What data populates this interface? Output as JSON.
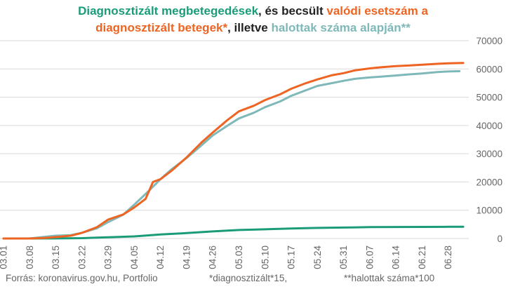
{
  "title": {
    "part1": "Diagnosztizált megbetegedések",
    "part2": ", és becsült ",
    "part3": "valódi esetszám a",
    "part4": "diagnosztizált betegek*",
    "part5": ", illetve ",
    "part6": "halottak száma alapján**"
  },
  "colors": {
    "green": "#1a9c78",
    "orange": "#ee6422",
    "teal": "#7fb8b8",
    "black": "#222222",
    "grid": "#d9d9d9",
    "axis_text": "#666666"
  },
  "footer": {
    "source": "Forrás: koronavirus.gov.hu, Portfolio",
    "note1": "*diagnosztizált*15,",
    "note2": "**halottak száma*100"
  },
  "chart_data": {
    "type": "line",
    "x_start": "2020-03-01",
    "x_end": "2020-07-02",
    "x_ticks": [
      "03.01",
      "03.08",
      "03.15",
      "03.22",
      "03.29",
      "04.05",
      "04.12",
      "04.19",
      "04.26",
      "05.03",
      "05.10",
      "05.17",
      "05.24",
      "05.31",
      "06.07",
      "06.14",
      "06.21",
      "06.28"
    ],
    "y_ticks": [
      0,
      10000,
      20000,
      30000,
      40000,
      50000,
      60000,
      70000
    ],
    "ylim": [
      0,
      70000
    ],
    "y_axis_position": "right",
    "grid": "horizontal",
    "series": [
      {
        "name": "Diagnosztizált megbetegedések",
        "color": "#1a9c78",
        "points": [
          [
            "2020-03-01",
            0
          ],
          [
            "2020-03-15",
            32
          ],
          [
            "2020-03-22",
            131
          ],
          [
            "2020-03-29",
            447
          ],
          [
            "2020-04-05",
            733
          ],
          [
            "2020-04-12",
            1410
          ],
          [
            "2020-04-19",
            1916
          ],
          [
            "2020-04-26",
            2500
          ],
          [
            "2020-05-03",
            2998
          ],
          [
            "2020-05-10",
            3263
          ],
          [
            "2020-05-17",
            3535
          ],
          [
            "2020-05-24",
            3756
          ],
          [
            "2020-05-31",
            3876
          ],
          [
            "2020-06-07",
            4014
          ],
          [
            "2020-06-14",
            4079
          ],
          [
            "2020-06-21",
            4102
          ],
          [
            "2020-06-28",
            4138
          ],
          [
            "2020-07-02",
            4150
          ]
        ]
      },
      {
        "name": "valódi esetszám a diagnosztizált betegek*",
        "color": "#ee6422",
        "points": [
          [
            "2020-03-01",
            0
          ],
          [
            "2020-03-08",
            0
          ],
          [
            "2020-03-12",
            200
          ],
          [
            "2020-03-15",
            500
          ],
          [
            "2020-03-19",
            1000
          ],
          [
            "2020-03-22",
            2000
          ],
          [
            "2020-03-26",
            4000
          ],
          [
            "2020-03-29",
            6700
          ],
          [
            "2020-04-02",
            8500
          ],
          [
            "2020-04-05",
            11000
          ],
          [
            "2020-04-08",
            14000
          ],
          [
            "2020-04-10",
            20000
          ],
          [
            "2020-04-12",
            21000
          ],
          [
            "2020-04-15",
            24000
          ],
          [
            "2020-04-19",
            28700
          ],
          [
            "2020-04-23",
            34000
          ],
          [
            "2020-04-26",
            37500
          ],
          [
            "2020-04-30",
            42000
          ],
          [
            "2020-05-03",
            45000
          ],
          [
            "2020-05-07",
            47000
          ],
          [
            "2020-05-10",
            49000
          ],
          [
            "2020-05-14",
            51000
          ],
          [
            "2020-05-17",
            53000
          ],
          [
            "2020-05-21",
            55000
          ],
          [
            "2020-05-24",
            56300
          ],
          [
            "2020-05-28",
            57800
          ],
          [
            "2020-05-31",
            58500
          ],
          [
            "2020-06-03",
            59500
          ],
          [
            "2020-06-07",
            60200
          ],
          [
            "2020-06-10",
            60600
          ],
          [
            "2020-06-14",
            61000
          ],
          [
            "2020-06-17",
            61200
          ],
          [
            "2020-06-21",
            61500
          ],
          [
            "2020-06-25",
            61800
          ],
          [
            "2020-06-28",
            62000
          ],
          [
            "2020-07-02",
            62100
          ]
        ]
      },
      {
        "name": "halottak száma alapján**",
        "color": "#7fb8b8",
        "points": [
          [
            "2020-03-01",
            0
          ],
          [
            "2020-03-08",
            0
          ],
          [
            "2020-03-12",
            600
          ],
          [
            "2020-03-15",
            1000
          ],
          [
            "2020-03-19",
            1200
          ],
          [
            "2020-03-22",
            2000
          ],
          [
            "2020-03-26",
            3600
          ],
          [
            "2020-03-29",
            5800
          ],
          [
            "2020-04-02",
            8400
          ],
          [
            "2020-04-05",
            12000
          ],
          [
            "2020-04-09",
            17000
          ],
          [
            "2020-04-12",
            21000
          ],
          [
            "2020-04-15",
            24500
          ],
          [
            "2020-04-19",
            28500
          ],
          [
            "2020-04-23",
            33000
          ],
          [
            "2020-04-26",
            36500
          ],
          [
            "2020-04-30",
            40000
          ],
          [
            "2020-05-03",
            42500
          ],
          [
            "2020-05-07",
            44500
          ],
          [
            "2020-05-10",
            46500
          ],
          [
            "2020-05-14",
            48500
          ],
          [
            "2020-05-17",
            50500
          ],
          [
            "2020-05-21",
            52500
          ],
          [
            "2020-05-24",
            54000
          ],
          [
            "2020-05-28",
            55000
          ],
          [
            "2020-05-31",
            55800
          ],
          [
            "2020-06-03",
            56500
          ],
          [
            "2020-06-07",
            57000
          ],
          [
            "2020-06-10",
            57300
          ],
          [
            "2020-06-14",
            57700
          ],
          [
            "2020-06-17",
            58000
          ],
          [
            "2020-06-21",
            58400
          ],
          [
            "2020-06-25",
            58900
          ],
          [
            "2020-06-28",
            59100
          ],
          [
            "2020-07-01",
            59200
          ]
        ]
      }
    ]
  }
}
